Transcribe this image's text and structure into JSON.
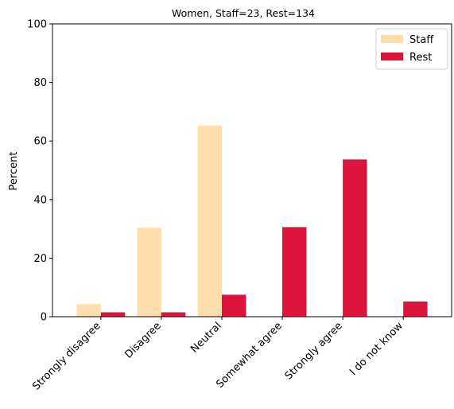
{
  "chart_data": {
    "type": "bar",
    "title": "Women, Staff=23, Rest=134",
    "xlabel": "",
    "ylabel": "Percent",
    "ylim": [
      0,
      100
    ],
    "yticks": [
      0,
      20,
      40,
      60,
      80,
      100
    ],
    "categories": [
      "Strongly disagree",
      "Disagree",
      "Neutral",
      "Somewhat agree",
      "Strongly agree",
      "I do not know"
    ],
    "series": [
      {
        "name": "Staff",
        "color": "#ffdead",
        "values": [
          4.3,
          30.4,
          65.2,
          0,
          0,
          0
        ]
      },
      {
        "name": "Rest",
        "color": "#dc143c",
        "values": [
          1.5,
          1.5,
          7.5,
          30.6,
          53.7,
          5.2
        ]
      }
    ],
    "legend_position": "top-right",
    "grid": false
  }
}
